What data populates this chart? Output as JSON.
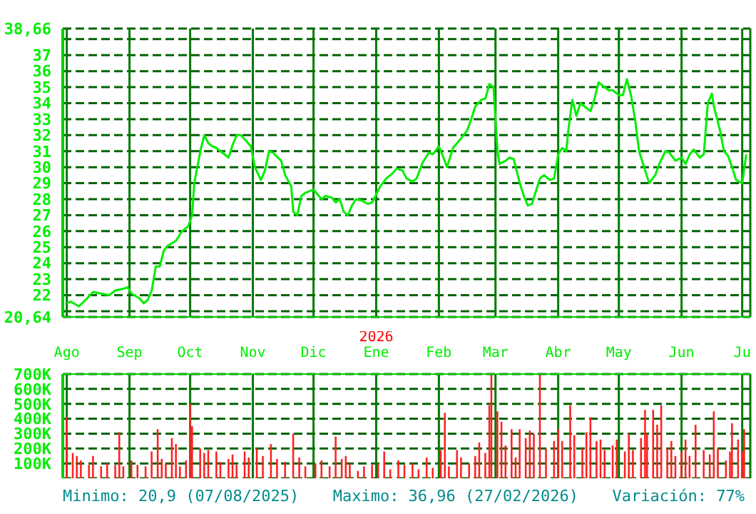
{
  "chart_data": [
    {
      "type": "line",
      "color": "#00ee00",
      "grid": true,
      "tick_labels": "y",
      "x": [
        "2025-08-01",
        "2025-08-03",
        "2025-08-07",
        "2025-08-11",
        "2025-08-14",
        "2025-08-18",
        "2025-08-22",
        "2025-08-25",
        "2025-08-29",
        "2025-08-31",
        "2025-09-02",
        "2025-09-06",
        "2025-09-08",
        "2025-09-10",
        "2025-09-12",
        "2025-09-14",
        "2025-09-16",
        "2025-09-18",
        "2025-09-20",
        "2025-09-24",
        "2025-09-27",
        "2025-09-30",
        "2025-10-02",
        "2025-10-03",
        "2025-10-05",
        "2025-10-06",
        "2025-10-08",
        "2025-10-10",
        "2025-10-12",
        "2025-10-14",
        "2025-10-16",
        "2025-10-20",
        "2025-10-22",
        "2025-10-24",
        "2025-10-26",
        "2025-10-29",
        "2025-10-31",
        "2025-11-02",
        "2025-11-05",
        "2025-11-07",
        "2025-11-09",
        "2025-11-11",
        "2025-11-15",
        "2025-11-17",
        "2025-11-20",
        "2025-11-21",
        "2025-11-23",
        "2025-11-25",
        "2025-11-27",
        "2025-12-01",
        "2025-12-03",
        "2025-12-05",
        "2025-12-07",
        "2025-12-10",
        "2025-12-12",
        "2025-12-14",
        "2025-12-16",
        "2025-12-18",
        "2025-12-20",
        "2025-12-22",
        "2025-12-25",
        "2025-12-28",
        "2025-12-30",
        "2026-01-03",
        "2026-01-06",
        "2026-01-09",
        "2026-01-11",
        "2026-01-14",
        "2026-01-16",
        "2026-01-19",
        "2026-01-21",
        "2026-01-24",
        "2026-01-27",
        "2026-01-29",
        "2026-02-01",
        "2026-02-03",
        "2026-02-05",
        "2026-02-08",
        "2026-02-10",
        "2026-02-12",
        "2026-02-15",
        "2026-02-17",
        "2026-02-19",
        "2026-02-22",
        "2026-02-24",
        "2026-02-26",
        "2026-02-28",
        "2026-03-02",
        "2026-03-03",
        "2026-03-06",
        "2026-03-08",
        "2026-03-10",
        "2026-03-13",
        "2026-03-15",
        "2026-03-17",
        "2026-03-19",
        "2026-03-21",
        "2026-03-23",
        "2026-03-25",
        "2026-03-28",
        "2026-03-30",
        "2026-04-01",
        "2026-04-03",
        "2026-04-05",
        "2026-04-06",
        "2026-04-08",
        "2026-04-10",
        "2026-04-12",
        "2026-04-15",
        "2026-04-17",
        "2026-04-19",
        "2026-04-21",
        "2026-04-24",
        "2026-04-26",
        "2026-04-28",
        "2026-05-01",
        "2026-05-03",
        "2026-05-05",
        "2026-05-07",
        "2026-05-09",
        "2026-05-11",
        "2026-05-14",
        "2026-05-16",
        "2026-05-19",
        "2026-05-21",
        "2026-05-24",
        "2026-05-26",
        "2026-05-29",
        "2026-06-01",
        "2026-06-03",
        "2026-06-05",
        "2026-06-07",
        "2026-06-10",
        "2026-06-12",
        "2026-06-14",
        "2026-06-16",
        "2026-06-17",
        "2026-06-20",
        "2026-06-22",
        "2026-06-24",
        "2026-06-26",
        "2026-06-28",
        "2026-07-01",
        "2026-07-03"
      ],
      "values": [
        21.5,
        21.6,
        21.3,
        21.8,
        22.2,
        22.1,
        22.0,
        22.3,
        22.4,
        22.5,
        22.1,
        21.8,
        21.5,
        21.7,
        22.3,
        23.8,
        23.8,
        24.8,
        25.1,
        25.4,
        26.0,
        26.3,
        27.0,
        29.0,
        30.3,
        31.0,
        32.0,
        31.5,
        31.3,
        31.2,
        31.0,
        30.6,
        31.4,
        32.0,
        32.0,
        31.6,
        31.3,
        30.0,
        29.2,
        29.8,
        31.0,
        30.9,
        30.4,
        29.5,
        28.8,
        27.2,
        27.0,
        28.2,
        28.4,
        28.6,
        28.3,
        28.0,
        28.2,
        28.1,
        27.8,
        28.0,
        27.2,
        27.0,
        27.6,
        28.0,
        27.9,
        27.7,
        27.8,
        28.8,
        29.3,
        29.6,
        29.9,
        29.8,
        29.3,
        29.1,
        29.3,
        30.3,
        30.9,
        30.8,
        31.3,
        30.7,
        30.0,
        31.2,
        31.5,
        31.8,
        32.3,
        33.0,
        33.8,
        34.2,
        34.3,
        35.2,
        35.0,
        31.0,
        30.2,
        30.4,
        30.6,
        30.5,
        29.0,
        28.2,
        27.6,
        27.7,
        28.5,
        29.3,
        29.5,
        29.2,
        29.3,
        30.8,
        31.2,
        31.0,
        32.3,
        34.2,
        33.2,
        34.0,
        33.7,
        33.5,
        34.3,
        35.3,
        35.0,
        34.8,
        34.8,
        34.5,
        34.5,
        35.5,
        34.5,
        33.0,
        31.0,
        29.8,
        29.0,
        29.5,
        30.2,
        31.0,
        30.9,
        30.4,
        30.6,
        30.2,
        30.8,
        31.1,
        30.6,
        30.8,
        34.0,
        34.6,
        33.8,
        32.3,
        31.0,
        30.7,
        30.0,
        29.2,
        29.0,
        30.8
      ],
      "xlim": [
        "2025-07-30",
        "2026-07-05"
      ],
      "xticks": [
        {
          "value": "2025-08-01",
          "label": null
        },
        {
          "value": "2025-09-01",
          "label": null
        },
        {
          "value": "2025-10-01",
          "label": null
        },
        {
          "value": "2025-11-01",
          "label": null
        },
        {
          "value": "2025-12-01",
          "label": null
        },
        {
          "value": "2026-01-01",
          "label": null
        },
        {
          "value": "2026-02-01",
          "label": null
        },
        {
          "value": "2026-03-01",
          "label": null
        },
        {
          "value": "2026-04-01",
          "label": null
        },
        {
          "value": "2026-05-01",
          "label": null
        },
        {
          "value": "2026-06-01",
          "label": null
        },
        {
          "value": "2026-07-01",
          "label": null
        }
      ],
      "ylim": [
        20.64,
        38.66
      ],
      "yticks": [
        {
          "value": 20.64,
          "label": "20,64"
        },
        {
          "value": 21,
          "label": null
        },
        22,
        23,
        24,
        25,
        26,
        27,
        28,
        29,
        30,
        31,
        32,
        33,
        34,
        35,
        36,
        37,
        {
          "value": 38,
          "label": null
        },
        {
          "value": 38.66,
          "label": "38,66"
        }
      ]
    },
    {
      "type": "bar",
      "color": "#ff2020",
      "grid": true,
      "x": [
        "2025-08-01",
        "2025-08-04",
        "2025-08-06",
        "2025-08-08",
        "2025-08-12",
        "2025-08-14",
        "2025-08-18",
        "2025-08-21",
        "2025-08-25",
        "2025-08-27",
        "2025-08-29",
        "2025-09-02",
        "2025-09-05",
        "2025-09-09",
        "2025-09-12",
        "2025-09-15",
        "2025-09-17",
        "2025-09-19",
        "2025-09-22",
        "2025-09-24",
        "2025-09-26",
        "2025-09-29",
        "2025-10-01",
        "2025-10-02",
        "2025-10-06",
        "2025-10-08",
        "2025-10-10",
        "2025-10-14",
        "2025-10-16",
        "2025-10-20",
        "2025-10-22",
        "2025-10-24",
        "2025-10-28",
        "2025-10-30",
        "2025-11-03",
        "2025-11-06",
        "2025-11-10",
        "2025-11-13",
        "2025-11-17",
        "2025-11-21",
        "2025-11-24",
        "2025-11-27",
        "2025-12-02",
        "2025-12-05",
        "2025-12-09",
        "2025-12-12",
        "2025-12-15",
        "2025-12-17",
        "2025-12-19",
        "2025-12-23",
        "2025-12-26",
        "2025-12-30",
        "2026-01-02",
        "2026-01-05",
        "2026-01-08",
        "2026-01-12",
        "2026-01-15",
        "2026-01-19",
        "2026-01-22",
        "2026-01-26",
        "2026-01-29",
        "2026-02-02",
        "2026-02-04",
        "2026-02-06",
        "2026-02-10",
        "2026-02-12",
        "2026-02-16",
        "2026-02-19",
        "2026-02-21",
        "2026-02-24",
        "2026-02-26",
        "2026-02-27",
        "2026-03-02",
        "2026-03-04",
        "2026-03-06",
        "2026-03-09",
        "2026-03-11",
        "2026-03-13",
        "2026-03-16",
        "2026-03-18",
        "2026-03-20",
        "2026-03-23",
        "2026-03-26",
        "2026-03-30",
        "2026-04-01",
        "2026-04-03",
        "2026-04-07",
        "2026-04-09",
        "2026-04-13",
        "2026-04-15",
        "2026-04-17",
        "2026-04-20",
        "2026-04-22",
        "2026-04-24",
        "2026-04-28",
        "2026-04-30",
        "2026-05-04",
        "2026-05-06",
        "2026-05-08",
        "2026-05-12",
        "2026-05-14",
        "2026-05-15",
        "2026-05-18",
        "2026-05-20",
        "2026-05-22",
        "2026-05-25",
        "2026-05-27",
        "2026-05-29",
        "2026-06-01",
        "2026-06-03",
        "2026-06-05",
        "2026-06-08",
        "2026-06-12",
        "2026-06-15",
        "2026-06-17",
        "2026-06-19",
        "2026-06-23",
        "2026-06-25",
        "2026-06-26",
        "2026-06-29",
        "2026-07-01",
        "2026-07-02"
      ],
      "values": [
        410000,
        170000,
        150000,
        120000,
        90000,
        150000,
        80000,
        100000,
        90000,
        310000,
        80000,
        120000,
        90000,
        80000,
        180000,
        330000,
        130000,
        100000,
        270000,
        230000,
        80000,
        120000,
        500000,
        350000,
        200000,
        170000,
        190000,
        180000,
        110000,
        130000,
        160000,
        90000,
        180000,
        140000,
        200000,
        150000,
        230000,
        130000,
        110000,
        300000,
        140000,
        80000,
        100000,
        120000,
        80000,
        280000,
        130000,
        150000,
        100000,
        50000,
        80000,
        90000,
        100000,
        180000,
        60000,
        120000,
        90000,
        100000,
        60000,
        140000,
        70000,
        190000,
        440000,
        80000,
        190000,
        140000,
        100000,
        150000,
        240000,
        170000,
        490000,
        700000,
        450000,
        380000,
        220000,
        330000,
        140000,
        330000,
        270000,
        320000,
        300000,
        700000,
        200000,
        250000,
        330000,
        250000,
        490000,
        290000,
        200000,
        310000,
        410000,
        250000,
        260000,
        190000,
        220000,
        260000,
        180000,
        300000,
        190000,
        270000,
        460000,
        300000,
        460000,
        360000,
        490000,
        200000,
        250000,
        150000,
        180000,
        260000,
        150000,
        360000,
        190000,
        160000,
        450000,
        200000,
        120000,
        180000,
        370000,
        260000,
        180000,
        330000
      ],
      "xlim": [
        "2025-07-30",
        "2026-07-05"
      ],
      "xticks": [
        {
          "value": "2025-08-01",
          "label": "Ago"
        },
        {
          "value": "2025-09-01",
          "label": "Sep"
        },
        {
          "value": "2025-10-01",
          "label": "Oct"
        },
        {
          "value": "2025-11-01",
          "label": "Nov"
        },
        {
          "value": "2025-12-01",
          "label": "Dic"
        },
        {
          "value": "2026-01-01",
          "label": "2026\nEne"
        },
        {
          "value": "2026-02-01",
          "label": "Feb"
        },
        {
          "value": "2026-03-01",
          "label": "Mar"
        },
        {
          "value": "2026-04-01",
          "label": "Abr"
        },
        {
          "value": "2026-05-01",
          "label": "May"
        },
        {
          "value": "2026-06-01",
          "label": "Jun"
        },
        {
          "value": "2026-07-01",
          "label": "Ju"
        }
      ],
      "ylim": [
        0,
        700000
      ],
      "yticks": [
        {
          "value": 100000,
          "label": "100K"
        },
        {
          "value": 200000,
          "label": "200K"
        },
        {
          "value": 300000,
          "label": "300K"
        },
        {
          "value": 400000,
          "label": "400K"
        },
        {
          "value": 500000,
          "label": "500K"
        },
        {
          "value": 600000,
          "label": "600K"
        },
        {
          "value": 700000,
          "label": "700K"
        }
      ],
      "annotations": [
        "Minimo: 20,9 (07/08/2025)",
        "Maximo: 36,96 (27/02/2026)",
        "Variación: 77%"
      ]
    }
  ]
}
